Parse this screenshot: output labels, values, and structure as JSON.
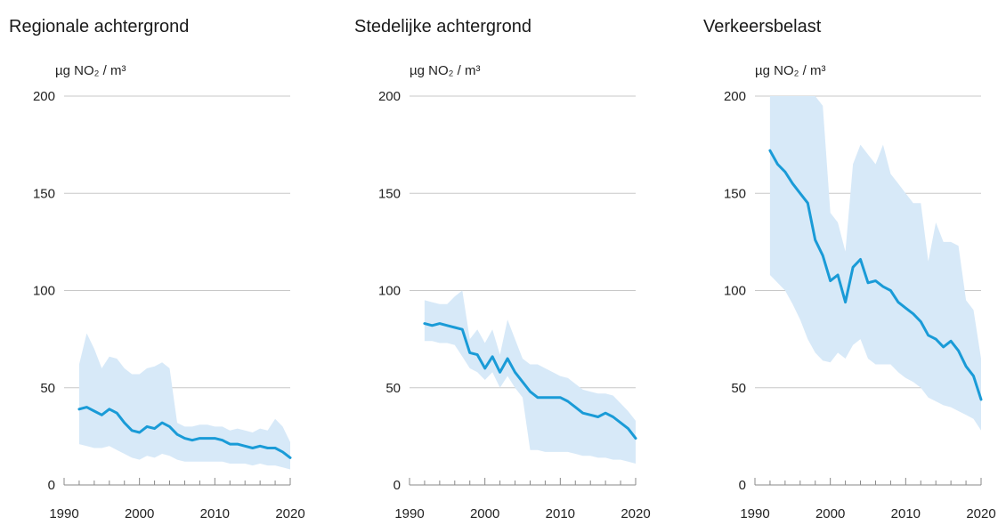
{
  "chart_data": [
    {
      "type": "line",
      "title": "Regionale achtergrond",
      "ylabel": "µg NO₂ / m³",
      "xlim": [
        1990,
        2020
      ],
      "ylim": [
        0,
        200
      ],
      "xticks": [
        1990,
        2000,
        2010,
        2020
      ],
      "yticks": [
        0,
        50,
        100,
        150,
        200
      ],
      "grid": true,
      "series": [
        {
          "kind": "line",
          "x": [
            1992,
            1993,
            1994,
            1995,
            1996,
            1997,
            1998,
            1999,
            2000,
            2001,
            2002,
            2003,
            2004,
            2005,
            2006,
            2007,
            2008,
            2009,
            2010,
            2011,
            2012,
            2013,
            2014,
            2015,
            2016,
            2017,
            2018,
            2019,
            2020
          ],
          "y": [
            39,
            40,
            38,
            36,
            39,
            37,
            32,
            28,
            27,
            30,
            29,
            32,
            30,
            26,
            24,
            23,
            24,
            24,
            24,
            23,
            21,
            21,
            20,
            19,
            20,
            19,
            19,
            17,
            14
          ]
        },
        {
          "kind": "range",
          "x": [
            1992,
            1993,
            1994,
            1995,
            1996,
            1997,
            1998,
            1999,
            2000,
            2001,
            2002,
            2003,
            2004,
            2005,
            2006,
            2007,
            2008,
            2009,
            2010,
            2011,
            2012,
            2013,
            2014,
            2015,
            2016,
            2017,
            2018,
            2019,
            2020
          ],
          "low": [
            21,
            20,
            19,
            19,
            20,
            18,
            16,
            14,
            13,
            15,
            14,
            16,
            15,
            13,
            12,
            12,
            12,
            12,
            12,
            12,
            11,
            11,
            11,
            10,
            11,
            10,
            10,
            9,
            8
          ],
          "high": [
            62,
            78,
            70,
            60,
            66,
            65,
            60,
            57,
            57,
            60,
            61,
            63,
            60,
            32,
            30,
            30,
            31,
            31,
            30,
            30,
            28,
            29,
            28,
            27,
            29,
            28,
            34,
            30,
            22
          ]
        }
      ]
    },
    {
      "type": "line",
      "title": "Stedelijke achtergrond",
      "ylabel": "µg NO₂ / m³",
      "xlim": [
        1990,
        2020
      ],
      "ylim": [
        0,
        200
      ],
      "xticks": [
        1990,
        2000,
        2010,
        2020
      ],
      "yticks": [
        0,
        50,
        100,
        150,
        200
      ],
      "grid": true,
      "series": [
        {
          "kind": "line",
          "x": [
            1992,
            1993,
            1994,
            1995,
            1996,
            1997,
            1998,
            1999,
            2000,
            2001,
            2002,
            2003,
            2004,
            2005,
            2006,
            2007,
            2008,
            2009,
            2010,
            2011,
            2012,
            2013,
            2014,
            2015,
            2016,
            2017,
            2018,
            2019,
            2020
          ],
          "y": [
            83,
            82,
            83,
            82,
            81,
            80,
            68,
            67,
            60,
            66,
            58,
            65,
            58,
            53,
            48,
            45,
            45,
            45,
            45,
            43,
            40,
            37,
            36,
            35,
            37,
            35,
            32,
            29,
            24
          ]
        },
        {
          "kind": "range",
          "x": [
            1992,
            1993,
            1994,
            1995,
            1996,
            1997,
            1998,
            1999,
            2000,
            2001,
            2002,
            2003,
            2004,
            2005,
            2006,
            2007,
            2008,
            2009,
            2010,
            2011,
            2012,
            2013,
            2014,
            2015,
            2016,
            2017,
            2018,
            2019,
            2020
          ],
          "low": [
            74,
            74,
            73,
            73,
            72,
            66,
            60,
            58,
            54,
            58,
            50,
            56,
            50,
            45,
            18,
            18,
            17,
            17,
            17,
            17,
            16,
            15,
            15,
            14,
            14,
            13,
            13,
            12,
            11
          ],
          "high": [
            95,
            94,
            93,
            93,
            97,
            100,
            75,
            80,
            73,
            80,
            67,
            85,
            75,
            65,
            62,
            62,
            60,
            58,
            56,
            55,
            52,
            49,
            48,
            47,
            47,
            46,
            42,
            38,
            33
          ]
        }
      ]
    },
    {
      "type": "line",
      "title": "Verkeersbelast",
      "ylabel": "µg NO₂ / m³",
      "xlim": [
        1990,
        2020
      ],
      "ylim": [
        0,
        200
      ],
      "xticks": [
        1990,
        2000,
        2010,
        2020
      ],
      "yticks": [
        0,
        50,
        100,
        150,
        200
      ],
      "grid": true,
      "series": [
        {
          "kind": "line",
          "x": [
            1992,
            1993,
            1994,
            1995,
            1996,
            1997,
            1998,
            1999,
            2000,
            2001,
            2002,
            2003,
            2004,
            2005,
            2006,
            2007,
            2008,
            2009,
            2010,
            2011,
            2012,
            2013,
            2014,
            2015,
            2016,
            2017,
            2018,
            2019,
            2020
          ],
          "y": [
            172,
            165,
            161,
            155,
            150,
            145,
            126,
            118,
            105,
            108,
            94,
            112,
            116,
            104,
            105,
            102,
            100,
            94,
            91,
            88,
            84,
            77,
            75,
            71,
            74,
            69,
            61,
            56,
            44
          ]
        },
        {
          "kind": "range",
          "x": [
            1992,
            1993,
            1994,
            1995,
            1996,
            1997,
            1998,
            1999,
            2000,
            2001,
            2002,
            2003,
            2004,
            2005,
            2006,
            2007,
            2008,
            2009,
            2010,
            2011,
            2012,
            2013,
            2014,
            2015,
            2016,
            2017,
            2018,
            2019,
            2020
          ],
          "low": [
            108,
            104,
            100,
            93,
            85,
            75,
            68,
            64,
            63,
            68,
            65,
            72,
            75,
            65,
            62,
            62,
            62,
            58,
            55,
            53,
            50,
            45,
            43,
            41,
            40,
            38,
            36,
            34,
            28
          ],
          "high": [
            200,
            200,
            200,
            200,
            200,
            200,
            200,
            195,
            140,
            135,
            120,
            165,
            175,
            170,
            165,
            175,
            160,
            155,
            150,
            145,
            145,
            115,
            135,
            125,
            125,
            123,
            95,
            90,
            65
          ]
        }
      ]
    }
  ]
}
